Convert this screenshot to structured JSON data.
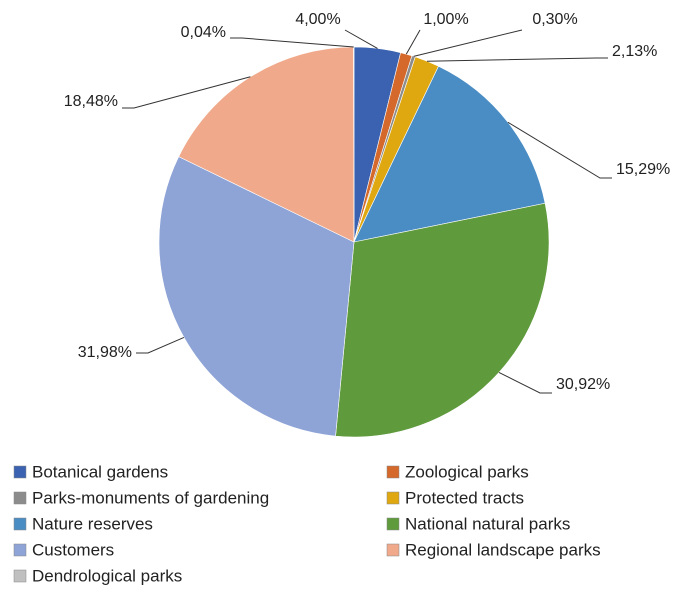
{
  "chart_data": {
    "type": "pie",
    "categories": [
      "Botanical gardens",
      "Zoological parks",
      "Parks-monuments of gardening",
      "Protected tracts",
      "Nature reserves",
      "National natural parks",
      "Customers",
      "Regional landscape parks",
      "Dendrological parks"
    ],
    "values": [
      4.0,
      1.0,
      0.3,
      2.13,
      15.29,
      30.92,
      31.98,
      18.48,
      0.04
    ],
    "value_labels": [
      "4,00%",
      "1,00%",
      "0,30%",
      "2,13%",
      "15,29%",
      "30,92%",
      "31,98%",
      "18,48%",
      "0,04%"
    ],
    "colors": [
      "#3a62b0",
      "#d4692b",
      "#8c8c8c",
      "#e0a810",
      "#4a8cc4",
      "#5f9a3c",
      "#8ea3d6",
      "#f0a98a",
      "#c0c0c0"
    ],
    "legend": "bottom"
  }
}
